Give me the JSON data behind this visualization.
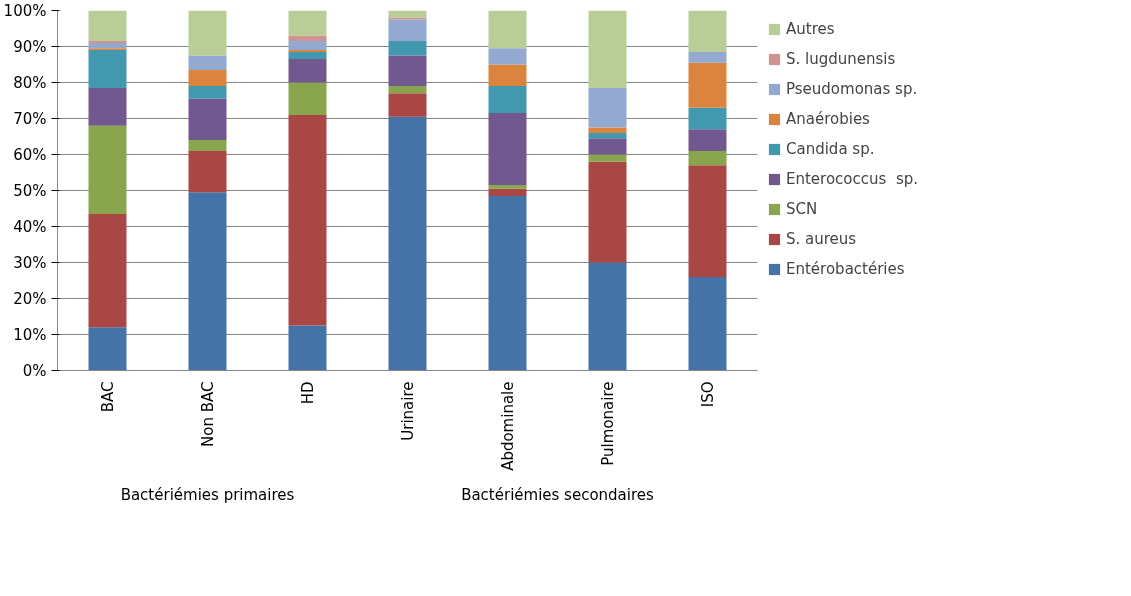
{
  "chart_data": {
    "type": "bar",
    "stacked": true,
    "categories": [
      "BAC",
      "Non BAC",
      "HD",
      "Urinaire",
      "Abdominale",
      "Pulmonaire",
      "ISO"
    ],
    "series": [
      {
        "name": "Entérobactéries",
        "color": "#4572a7",
        "values": [
          12,
          49.5,
          12.5,
          70.5,
          48.5,
          30,
          26
        ]
      },
      {
        "name": "S. aureus",
        "color": "#aa4643",
        "values": [
          31.5,
          11.5,
          58.5,
          6.5,
          2,
          28,
          31
        ]
      },
      {
        "name": "SCN",
        "color": "#89a54e",
        "values": [
          24.5,
          3,
          9,
          2,
          1,
          2,
          4
        ]
      },
      {
        "name": "Enterococcus  sp.",
        "color": "#71588f",
        "values": [
          10.5,
          11.5,
          6.5,
          8.5,
          20,
          4.5,
          6
        ]
      },
      {
        "name": "Candida sp.",
        "color": "#4198af",
        "values": [
          10.5,
          3.5,
          2,
          4,
          7.5,
          1.5,
          6
        ]
      },
      {
        "name": "Anaérobies",
        "color": "#db843d",
        "values": [
          0.5,
          4.5,
          0.5,
          0,
          6,
          1.5,
          12.5
        ]
      },
      {
        "name": "Pseudomonas sp.",
        "color": "#93a9cf",
        "values": [
          1.5,
          4,
          2.5,
          6,
          4.5,
          11,
          3
        ]
      },
      {
        "name": "S. lugdunensis",
        "color": "#d19392",
        "values": [
          0.5,
          0,
          1.5,
          0.5,
          0,
          0,
          0
        ]
      },
      {
        "name": "Autres",
        "color": "#b9cd96",
        "values": [
          8.5,
          12.5,
          7,
          2,
          10.5,
          21.5,
          11.5
        ]
      }
    ],
    "ylim": [
      0,
      100
    ],
    "yticks": [
      {
        "value": 0,
        "label": "0%"
      },
      {
        "value": 10,
        "label": "10%"
      },
      {
        "value": 20,
        "label": "20%"
      },
      {
        "value": 30,
        "label": "30%"
      },
      {
        "value": 40,
        "label": "40%"
      },
      {
        "value": 50,
        "label": "50%"
      },
      {
        "value": 60,
        "label": "60%"
      },
      {
        "value": 70,
        "label": "70%"
      },
      {
        "value": 80,
        "label": "80%"
      },
      {
        "value": 90,
        "label": "90%"
      },
      {
        "value": 100,
        "label": "100%"
      }
    ],
    "grid": "y",
    "legend": "right",
    "annotations": [
      "Bactériémies primaires",
      "Bactériémies secondaires"
    ]
  }
}
